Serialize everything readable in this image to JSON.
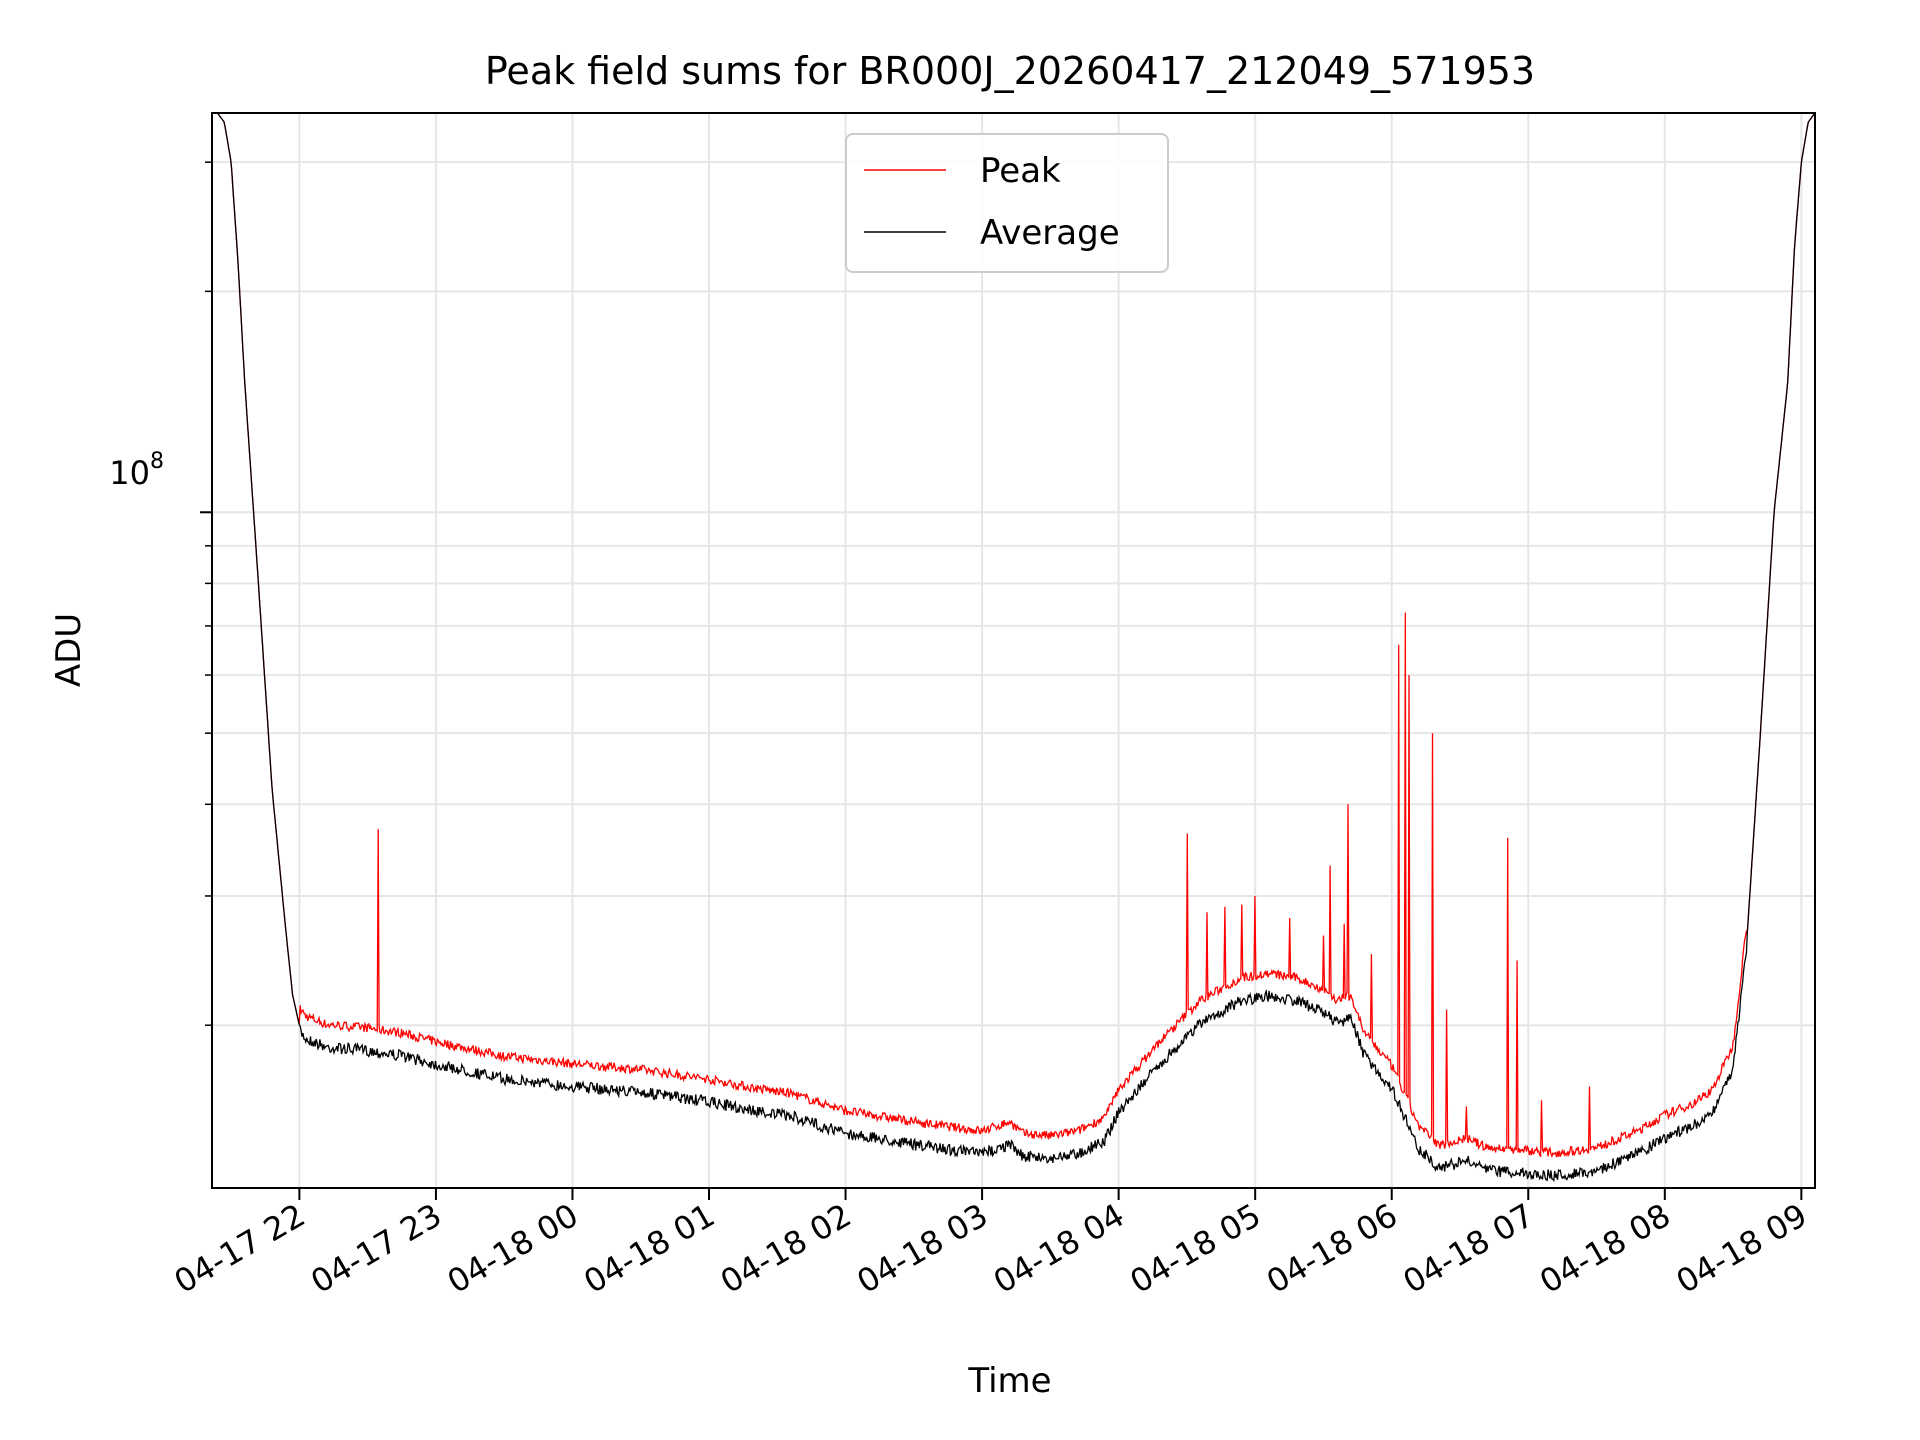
{
  "chart_data": {
    "type": "line",
    "title": "Peak field sums for BR000J_20260417_212049_571953",
    "xlabel": "Time",
    "ylabel": "ADU",
    "yscale": "log",
    "ylim": [
      12000000,
      350000000
    ],
    "xlim_hours": [
      -0.64,
      11.1
    ],
    "y_tick_label": {
      "base": "10",
      "exponent": "8",
      "value": 100000000
    },
    "x_ticks": [
      {
        "h": 0,
        "label": "04-17 22"
      },
      {
        "h": 1,
        "label": "04-17 23"
      },
      {
        "h": 2,
        "label": "04-18 00"
      },
      {
        "h": 3,
        "label": "04-18 01"
      },
      {
        "h": 4,
        "label": "04-18 02"
      },
      {
        "h": 5,
        "label": "04-18 03"
      },
      {
        "h": 6,
        "label": "04-18 04"
      },
      {
        "h": 7,
        "label": "04-18 05"
      },
      {
        "h": 8,
        "label": "04-18 06"
      },
      {
        "h": 9,
        "label": "04-18 07"
      },
      {
        "h": 10,
        "label": "04-18 08"
      },
      {
        "h": 11,
        "label": "04-18 09"
      }
    ],
    "legend": {
      "position": "upper-center",
      "entries": [
        "Peak",
        "Average"
      ]
    },
    "grid": true,
    "series": [
      {
        "name": "Average",
        "color": "#000000",
        "points": [
          [
            -0.6,
            350000000
          ],
          [
            -0.55,
            340000000
          ],
          [
            -0.5,
            300000000
          ],
          [
            -0.45,
            220000000
          ],
          [
            -0.4,
            150000000
          ],
          [
            -0.3,
            80000000
          ],
          [
            -0.2,
            42000000
          ],
          [
            -0.1,
            27000000
          ],
          [
            -0.05,
            22000000
          ],
          [
            0,
            20000000
          ],
          [
            0.05,
            19500000
          ],
          [
            0.2,
            19000000
          ],
          [
            0.5,
            18800000
          ],
          [
            0.75,
            18500000
          ],
          [
            1,
            18000000
          ],
          [
            1.5,
            17200000
          ],
          [
            2,
            16800000
          ],
          [
            2.5,
            16500000
          ],
          [
            3,
            16000000
          ],
          [
            3.3,
            15600000
          ],
          [
            3.6,
            15300000
          ],
          [
            4,
            14500000
          ],
          [
            4.5,
            14000000
          ],
          [
            5,
            13600000
          ],
          [
            5.2,
            14000000
          ],
          [
            5.3,
            13500000
          ],
          [
            5.5,
            13400000
          ],
          [
            5.7,
            13600000
          ],
          [
            5.9,
            14200000
          ],
          [
            6,
            15500000
          ],
          [
            6.3,
            18000000
          ],
          [
            6.6,
            20500000
          ],
          [
            6.9,
            22000000
          ],
          [
            7.1,
            22300000
          ],
          [
            7.3,
            22000000
          ],
          [
            7.5,
            21200000
          ],
          [
            7.6,
            20500000
          ],
          [
            7.7,
            20800000
          ],
          [
            7.8,
            18500000
          ],
          [
            8,
            16700000
          ],
          [
            8.2,
            13800000
          ],
          [
            8.35,
            13000000
          ],
          [
            8.55,
            13300000
          ],
          [
            8.7,
            12900000
          ],
          [
            9,
            12800000
          ],
          [
            9.2,
            12700000
          ],
          [
            9.5,
            12900000
          ],
          [
            9.8,
            13600000
          ],
          [
            10,
            14300000
          ],
          [
            10.2,
            14800000
          ],
          [
            10.35,
            15500000
          ],
          [
            10.5,
            17800000
          ],
          [
            10.6,
            26000000
          ],
          [
            10.7,
            50000000
          ],
          [
            10.8,
            100000000
          ],
          [
            10.9,
            150000000
          ],
          [
            10.95,
            230000000
          ],
          [
            11,
            300000000
          ],
          [
            11.05,
            340000000
          ],
          [
            11.1,
            350000000
          ]
        ]
      },
      {
        "name": "Peak",
        "color": "#ff0000",
        "offset_ratio": 1.04,
        "spikes": [
          [
            0.58,
            37000000
          ],
          [
            6.5,
            36500000
          ],
          [
            6.65,
            28500000
          ],
          [
            6.78,
            29000000
          ],
          [
            6.9,
            29200000
          ],
          [
            7,
            30000000
          ],
          [
            7.25,
            28000000
          ],
          [
            7.5,
            26500000
          ],
          [
            7.55,
            33000000
          ],
          [
            7.65,
            27500000
          ],
          [
            7.68,
            40000000
          ],
          [
            7.85,
            25000000
          ],
          [
            8.05,
            66000000
          ],
          [
            8.1,
            73000000
          ],
          [
            8.13,
            60000000
          ],
          [
            8.3,
            50000000
          ],
          [
            8.4,
            21000000
          ],
          [
            8.55,
            15500000
          ],
          [
            8.85,
            36000000
          ],
          [
            8.92,
            24500000
          ],
          [
            9.1,
            15800000
          ],
          [
            9.45,
            16500000
          ]
        ]
      }
    ]
  }
}
